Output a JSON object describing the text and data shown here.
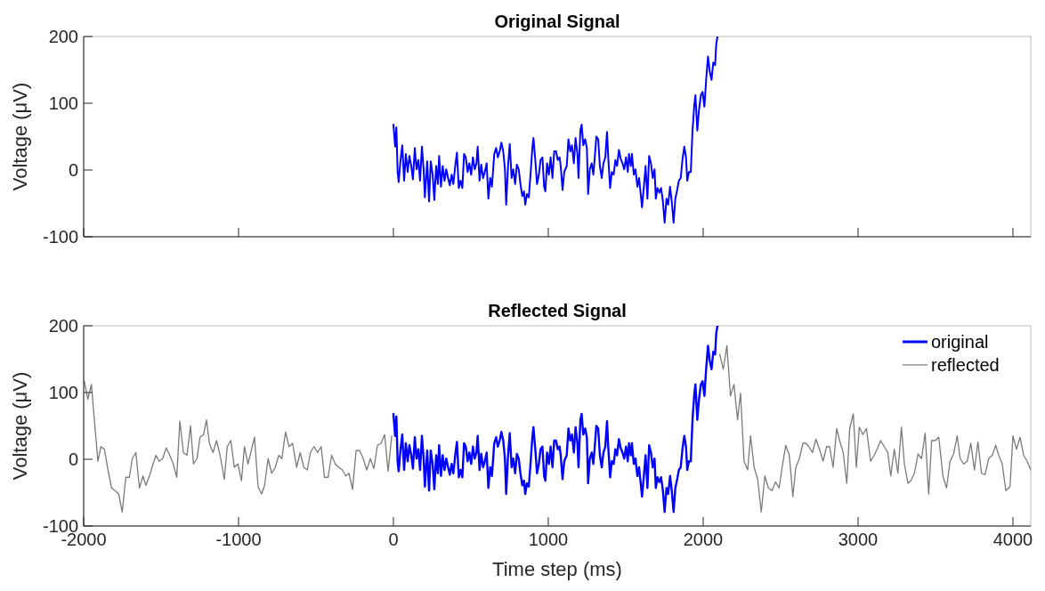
{
  "chart_data": [
    {
      "type": "line",
      "title": "Original Signal",
      "ylabel": "Voltage (μV)",
      "xlim": [
        -2000,
        4115
      ],
      "ylim": [
        -100,
        200
      ],
      "xticks": [
        {
          "value": -2000,
          "label": null
        },
        {
          "value": -1000,
          "label": null
        },
        {
          "value": 0,
          "label": null
        },
        {
          "value": 1000,
          "label": null
        },
        {
          "value": 2000,
          "label": null
        },
        {
          "value": 3000,
          "label": null
        },
        {
          "value": 4000,
          "label": null
        }
      ],
      "yticks": [
        -100,
        0,
        100,
        200
      ],
      "tick_labels": "y",
      "legend": false,
      "grid": false,
      "series": [
        {
          "color": "#0000ff",
          "x": [
            0,
            11,
            19,
            27,
            34,
            46,
            57,
            69,
            80,
            92,
            103,
            115,
            126,
            138,
            149,
            161,
            172,
            184,
            195,
            203,
            218,
            230,
            241,
            253,
            264,
            276,
            287,
            295,
            307,
            318,
            330,
            341,
            353,
            364,
            376,
            387,
            399,
            410,
            422,
            433,
            445,
            456,
            467,
            479,
            490,
            502,
            513,
            525,
            536,
            544,
            556,
            567,
            579,
            590,
            602,
            613,
            625,
            636,
            651,
            663,
            674,
            686,
            697,
            709,
            720,
            728,
            740,
            751,
            763,
            774,
            786,
            797,
            809,
            820,
            832,
            843,
            851,
            862,
            874,
            885,
            897,
            904,
            916,
            927,
            939,
            950,
            962,
            973,
            981,
            992,
            1004,
            1015,
            1027,
            1038,
            1050,
            1061,
            1073,
            1080,
            1092,
            1103,
            1119,
            1130,
            1142,
            1153,
            1165,
            1176,
            1188,
            1195,
            1207,
            1215,
            1226,
            1238,
            1249,
            1257,
            1268,
            1280,
            1291,
            1303,
            1310,
            1322,
            1333,
            1345,
            1356,
            1368,
            1379,
            1387,
            1399,
            1410,
            1422,
            1433,
            1444,
            1456,
            1467,
            1479,
            1490,
            1502,
            1513,
            1521,
            1533,
            1540,
            1552,
            1563,
            1575,
            1586,
            1598,
            1605,
            1617,
            1628,
            1640,
            1651,
            1663,
            1674,
            1686,
            1694,
            1705,
            1717,
            1728,
            1740,
            1751,
            1763,
            1774,
            1786,
            1797,
            1809,
            1820,
            1832,
            1843,
            1855,
            1866,
            1878,
            1889,
            1897,
            1908,
            1920,
            1931,
            1943,
            1950,
            1962,
            1973,
            1985,
            1996,
            2008,
            2019,
            2031,
            2042,
            2054,
            2065,
            2077,
            2084,
            2092
          ],
          "values": [
            68,
            35,
            64,
            -3,
            -18,
            15,
            37,
            -16,
            24,
            -3,
            21,
            6,
            -14,
            33,
            1,
            15,
            -16,
            35,
            1,
            -41,
            13,
            -47,
            13,
            -7,
            -45,
            6,
            -21,
            21,
            -25,
            6,
            -16,
            1,
            -12,
            -23,
            -7,
            -21,
            6,
            26,
            -27,
            -16,
            -27,
            24,
            19,
            -3,
            10,
            -7,
            19,
            1,
            10,
            35,
            -16,
            8,
            -12,
            -3,
            10,
            -43,
            -12,
            -25,
            24,
            33,
            19,
            28,
            41,
            28,
            1,
            -52,
            6,
            39,
            -12,
            1,
            -21,
            8,
            1,
            -21,
            -39,
            -32,
            -52,
            -36,
            -41,
            -7,
            33,
            48,
            15,
            -21,
            -7,
            15,
            19,
            -25,
            -32,
            10,
            -7,
            19,
            -12,
            28,
            28,
            15,
            19,
            6,
            -30,
            -3,
            6,
            46,
            28,
            37,
            10,
            48,
            24,
            -12,
            59,
            68,
            37,
            46,
            33,
            -36,
            1,
            10,
            -7,
            28,
            50,
            46,
            6,
            -12,
            10,
            19,
            57,
            19,
            -27,
            -3,
            -7,
            15,
            6,
            30,
            17,
            10,
            1,
            19,
            -3,
            24,
            6,
            24,
            -7,
            1,
            -25,
            -12,
            -39,
            -56,
            -25,
            6,
            -43,
            21,
            10,
            -12,
            1,
            -43,
            -27,
            -34,
            -27,
            -47,
            -79,
            -43,
            -52,
            -25,
            -47,
            -79,
            -43,
            -30,
            -16,
            -12,
            15,
            35,
            19,
            -16,
            -3,
            -3,
            59,
            99,
            112,
            59,
            90,
            112,
            117,
            95,
            135,
            170,
            148,
            135,
            161,
            157,
            188,
            200
          ]
        }
      ]
    },
    {
      "type": "line",
      "title": "Reflected Signal",
      "xlabel": "Time step (ms)",
      "ylabel": "Voltage (μV)",
      "xlim": [
        -2000,
        4115
      ],
      "ylim": [
        -100,
        200
      ],
      "xticks": [
        -2000,
        -1000,
        0,
        1000,
        2000,
        3000,
        4000
      ],
      "yticks": [
        -100,
        0,
        100,
        200
      ],
      "legend": "top right",
      "grid": false,
      "series": [
        {
          "name": "reflected",
          "color": "#7a7a7a",
          "x": [
            -1996,
            -1973,
            -1950,
            -1931,
            -1908,
            -1889,
            -1866,
            -1843,
            -1820,
            -1797,
            -1774,
            -1751,
            -1728,
            -1705,
            -1686,
            -1663,
            -1640,
            -1617,
            -1598,
            -1575,
            -1552,
            -1533,
            -1513,
            -1490,
            -1467,
            -1444,
            -1422,
            -1399,
            -1379,
            -1356,
            -1333,
            -1310,
            -1291,
            -1268,
            -1249,
            -1226,
            -1207,
            -1188,
            -1165,
            -1142,
            -1119,
            -1092,
            -1073,
            -1050,
            -1027,
            -1004,
            -981,
            -962,
            -939,
            -916,
            -897,
            -874,
            -851,
            -832,
            -809,
            -786,
            -763,
            -740,
            -720,
            -697,
            -674,
            -651,
            -625,
            -602,
            -579,
            -556,
            -536,
            -513,
            -490,
            -467,
            -445,
            -422,
            -399,
            -376,
            -353,
            -330,
            -307,
            -287,
            -264,
            -241,
            -218,
            -195,
            -172,
            -149,
            -126,
            -103,
            -80,
            -57,
            -34,
            -11,
            0,
            1000,
            2092,
            2107,
            2130,
            2153,
            2176,
            2199,
            2222,
            2241,
            2264,
            2287,
            2306,
            2329,
            2352,
            2375,
            2398,
            2421,
            2444,
            2467,
            2490,
            2510,
            2533,
            2556,
            2579,
            2598,
            2621,
            2644,
            2663,
            2682,
            2705,
            2728,
            2751,
            2774,
            2797,
            2816,
            2839,
            2862,
            2881,
            2904,
            2927,
            2946,
            2969,
            2989,
            3008,
            3031,
            3054,
            3081,
            3104,
            3123,
            3146,
            3169,
            3192,
            3211,
            3234,
            3257,
            3280,
            3299,
            3322,
            3341,
            3364,
            3387,
            3410,
            3433,
            3456,
            3475,
            3498,
            3521,
            3548,
            3571,
            3594,
            3617,
            3640,
            3659,
            3682,
            3705,
            3728,
            3751,
            3774,
            3797,
            3820,
            3843,
            3866,
            3889,
            3908,
            3931,
            3954,
            3981,
            4000,
            4023,
            4046,
            4069,
            4092,
            4115
          ],
          "values": [
            117,
            90,
            112,
            59,
            -3,
            19,
            15,
            -16,
            -43,
            -47,
            -52,
            -79,
            -27,
            -27,
            1,
            10,
            -43,
            -25,
            -39,
            -25,
            -7,
            6,
            -3,
            1,
            17,
            6,
            -7,
            -27,
            57,
            10,
            6,
            50,
            -7,
            1,
            33,
            37,
            59,
            24,
            10,
            28,
            6,
            -30,
            19,
            28,
            -12,
            -7,
            -32,
            19,
            -7,
            15,
            33,
            -41,
            -52,
            -39,
            1,
            -21,
            -12,
            6,
            1,
            41,
            19,
            24,
            -12,
            10,
            -12,
            -16,
            10,
            19,
            10,
            19,
            -27,
            -27,
            6,
            -7,
            -12,
            -16,
            -25,
            -21,
            -45,
            13,
            13,
            1,
            -16,
            1,
            -14,
            21,
            24,
            37,
            -18,
            35,
            null,
            null,
            null,
            157,
            135,
            170,
            95,
            112,
            59,
            99,
            -3,
            -16,
            35,
            -12,
            -30,
            -79,
            -25,
            -43,
            -47,
            -34,
            -43,
            -12,
            21,
            6,
            -56,
            -12,
            1,
            24,
            24,
            19,
            10,
            30,
            15,
            -3,
            19,
            19,
            -12,
            46,
            28,
            10,
            -36,
            46,
            68,
            -12,
            48,
            37,
            46,
            -3,
            6,
            15,
            28,
            19,
            10,
            -25,
            15,
            -21,
            48,
            -7,
            -36,
            -32,
            -21,
            8,
            1,
            39,
            -52,
            28,
            28,
            33,
            -25,
            -43,
            -3,
            8,
            35,
            1,
            -7,
            -3,
            24,
            -16,
            26,
            -21,
            -23,
            1,
            6,
            21,
            6,
            -7,
            -47,
            -41,
            35,
            15,
            33,
            6,
            -3,
            -16
          ]
        },
        {
          "name": "original",
          "color": "#0000ff",
          "x": [
            0,
            11,
            19,
            27,
            34,
            46,
            57,
            69,
            80,
            92,
            103,
            115,
            126,
            138,
            149,
            161,
            172,
            184,
            195,
            203,
            218,
            230,
            241,
            253,
            264,
            276,
            287,
            295,
            307,
            318,
            330,
            341,
            353,
            364,
            376,
            387,
            399,
            410,
            422,
            433,
            445,
            456,
            467,
            479,
            490,
            502,
            513,
            525,
            536,
            544,
            556,
            567,
            579,
            590,
            602,
            613,
            625,
            636,
            651,
            663,
            674,
            686,
            697,
            709,
            720,
            728,
            740,
            751,
            763,
            774,
            786,
            797,
            809,
            820,
            832,
            843,
            851,
            862,
            874,
            885,
            897,
            904,
            916,
            927,
            939,
            950,
            962,
            973,
            981,
            992,
            1004,
            1015,
            1027,
            1038,
            1050,
            1061,
            1073,
            1080,
            1092,
            1103,
            1119,
            1130,
            1142,
            1153,
            1165,
            1176,
            1188,
            1195,
            1207,
            1215,
            1226,
            1238,
            1249,
            1257,
            1268,
            1280,
            1291,
            1303,
            1310,
            1322,
            1333,
            1345,
            1356,
            1368,
            1379,
            1387,
            1399,
            1410,
            1422,
            1433,
            1444,
            1456,
            1467,
            1479,
            1490,
            1502,
            1513,
            1521,
            1533,
            1540,
            1552,
            1563,
            1575,
            1586,
            1598,
            1605,
            1617,
            1628,
            1640,
            1651,
            1663,
            1674,
            1686,
            1694,
            1705,
            1717,
            1728,
            1740,
            1751,
            1763,
            1774,
            1786,
            1797,
            1809,
            1820,
            1832,
            1843,
            1855,
            1866,
            1878,
            1889,
            1897,
            1908,
            1920,
            1931,
            1943,
            1950,
            1962,
            1973,
            1985,
            1996,
            2008,
            2019,
            2031,
            2042,
            2054,
            2065,
            2077,
            2084,
            2092
          ],
          "values": [
            68,
            35,
            64,
            -3,
            -18,
            15,
            37,
            -16,
            24,
            -3,
            21,
            6,
            -14,
            33,
            1,
            15,
            -16,
            35,
            1,
            -41,
            13,
            -47,
            13,
            -7,
            -45,
            6,
            -21,
            21,
            -25,
            6,
            -16,
            1,
            -12,
            -23,
            -7,
            -21,
            6,
            26,
            -27,
            -16,
            -27,
            24,
            19,
            -3,
            10,
            -7,
            19,
            1,
            10,
            35,
            -16,
            8,
            -12,
            -3,
            10,
            -43,
            -12,
            -25,
            24,
            33,
            19,
            28,
            41,
            28,
            1,
            -52,
            6,
            39,
            -12,
            1,
            -21,
            8,
            1,
            -21,
            -39,
            -32,
            -52,
            -36,
            -41,
            -7,
            33,
            48,
            15,
            -21,
            -7,
            15,
            19,
            -25,
            -32,
            10,
            -7,
            19,
            -12,
            28,
            28,
            15,
            19,
            6,
            -30,
            -3,
            6,
            46,
            28,
            37,
            10,
            48,
            24,
            -12,
            59,
            68,
            37,
            46,
            33,
            -36,
            1,
            10,
            -7,
            28,
            50,
            46,
            6,
            -12,
            10,
            19,
            57,
            19,
            -27,
            -3,
            -7,
            15,
            6,
            30,
            17,
            10,
            1,
            19,
            -3,
            24,
            6,
            24,
            -7,
            1,
            -25,
            -12,
            -39,
            -56,
            -25,
            6,
            -43,
            21,
            10,
            -12,
            1,
            -43,
            -27,
            -34,
            -27,
            -47,
            -79,
            -43,
            -52,
            -25,
            -47,
            -79,
            -43,
            -30,
            -16,
            -12,
            15,
            35,
            19,
            -16,
            -3,
            -3,
            59,
            99,
            112,
            59,
            90,
            112,
            117,
            95,
            135,
            170,
            148,
            135,
            161,
            157,
            188,
            200
          ]
        }
      ]
    }
  ]
}
